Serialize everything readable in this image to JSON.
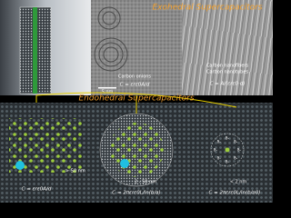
{
  "header": {
    "title_top": "Exohedral Supercapacitors",
    "title_middle": "Endohedral Supercapacitors"
  },
  "top_panels": {
    "scale_bar": "5 nm",
    "onions": {
      "label": "Carbon onions",
      "formula": "C = εrε0A/d"
    },
    "fibers": {
      "label_1": "Carbon nanofibers",
      "label_2": "Carbon nanotubes",
      "formula": "C = A/(εrε0·d)"
    }
  },
  "bottom_panels": [
    {
      "size": "> 50 nm",
      "formula": "C = εrε0A/d"
    },
    {
      "size": "2 - 50 nm",
      "formula": "C = 2πεrε0L/ln(b/a)"
    },
    {
      "size": "< 2 nm",
      "formula": "C = 2πεrε0L/ln(b/a0)"
    }
  ],
  "delta_labels": [
    "δ-",
    "δ-",
    "δ-",
    "δ-",
    "δ-",
    "δ-",
    "δ-",
    "δ-"
  ]
}
